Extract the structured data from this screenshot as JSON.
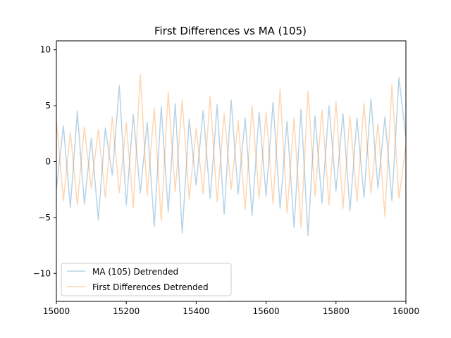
{
  "chart_data": {
    "type": "line",
    "title": "First Differences vs MA (105)",
    "xlabel": "",
    "ylabel": "",
    "xlim": [
      15000,
      16000
    ],
    "ylim": [
      -12.5,
      10.8
    ],
    "x_ticks": [
      15000,
      15200,
      15400,
      15600,
      15800,
      16000
    ],
    "y_ticks": [
      -10,
      -5,
      0,
      5,
      10
    ],
    "x_tick_labels": [
      "15000",
      "15200",
      "15400",
      "15600",
      "15800",
      "16000"
    ],
    "y_tick_labels": [
      "−10",
      "−5",
      "0",
      "5",
      "10"
    ],
    "grid": false,
    "legend_position": "lower-left",
    "x": [
      15000,
      15020,
      15040,
      15060,
      15080,
      15100,
      15120,
      15140,
      15160,
      15180,
      15200,
      15220,
      15240,
      15260,
      15280,
      15300,
      15320,
      15340,
      15360,
      15380,
      15400,
      15420,
      15440,
      15460,
      15480,
      15500,
      15520,
      15540,
      15560,
      15580,
      15600,
      15620,
      15640,
      15660,
      15680,
      15700,
      15720,
      15740,
      15760,
      15780,
      15800,
      15820,
      15840,
      15860,
      15880,
      15900,
      15920,
      15940,
      15960,
      15980,
      16000
    ],
    "series": [
      {
        "name": "MA (105) Detrended",
        "color": "#1f77b4",
        "alpha": 0.32,
        "values": [
          -2.5,
          3.2,
          -4.1,
          4.5,
          -3.8,
          2.1,
          -5.2,
          3.0,
          -1.2,
          6.8,
          -3.9,
          4.2,
          -2.8,
          3.5,
          -5.8,
          4.9,
          -4.5,
          5.2,
          -6.4,
          3.8,
          -2.1,
          4.6,
          -3.3,
          5.1,
          -4.7,
          5.5,
          -2.9,
          3.9,
          -4.8,
          4.4,
          -3.1,
          5.3,
          -4.2,
          3.6,
          -5.9,
          4.7,
          -6.6,
          4.1,
          -3.7,
          5.0,
          -2.6,
          4.3,
          -4.4,
          3.9,
          -3.2,
          5.6,
          -2.4,
          4.0,
          -3.5,
          7.5,
          2.2
        ]
      },
      {
        "name": "First Differences Detrended",
        "color": "#ff7f0e",
        "alpha": 0.32,
        "values": [
          3.8,
          -3.5,
          2.6,
          -3.9,
          3.1,
          -2.4,
          2.9,
          -3.2,
          4.0,
          -2.8,
          3.5,
          -4.1,
          7.8,
          -3.0,
          4.8,
          -5.3,
          6.2,
          -2.7,
          5.5,
          -3.4,
          3.0,
          -2.9,
          5.8,
          -3.6,
          4.3,
          -2.5,
          3.7,
          -4.3,
          5.0,
          -3.3,
          4.4,
          -3.8,
          6.5,
          -4.6,
          3.9,
          -5.9,
          6.3,
          -3.1,
          4.6,
          -3.9,
          5.4,
          -4.2,
          4.1,
          -3.6,
          5.2,
          -2.8,
          3.4,
          -4.9,
          6.9,
          -3.3,
          1.5
        ]
      }
    ]
  }
}
